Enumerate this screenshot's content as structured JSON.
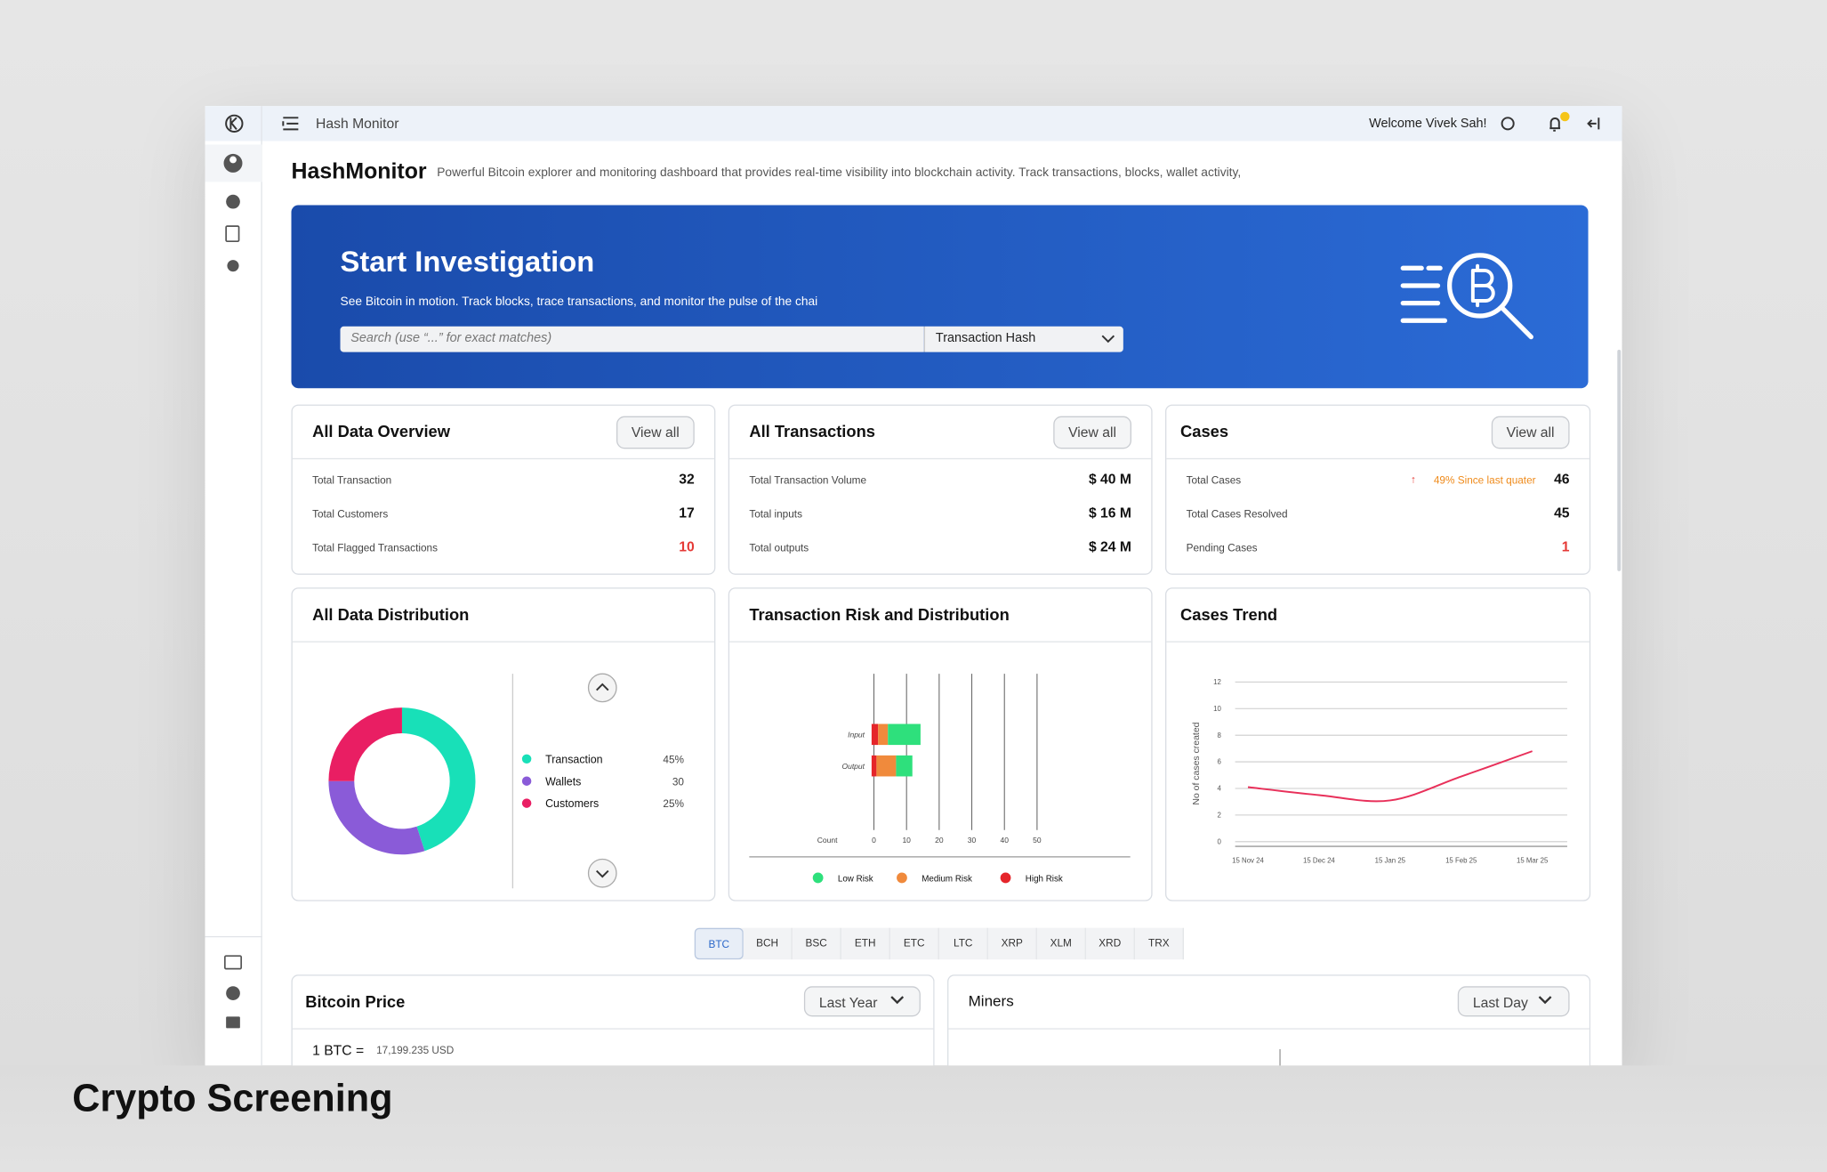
{
  "brand": "Crypto Screening",
  "topbar": {
    "title": "Hash Monitor",
    "welcome": "Welcome Vivek Sah!"
  },
  "header": {
    "title": "HashMonitor",
    "description": "Powerful Bitcoin explorer and monitoring dashboard that provides real-time visibility into blockchain activity. Track transactions, blocks, wallet activity,"
  },
  "hero": {
    "title": "Start Investigation",
    "subtitle": "See Bitcoin in motion. Track blocks, trace transactions, and monitor the pulse of the chai",
    "search_placeholder": "Search (use “...” for exact matches)",
    "search_type": "Transaction Hash"
  },
  "overview_cards": [
    {
      "title": "All Data Overview",
      "button": "View all",
      "rows": [
        {
          "label": "Total Transaction",
          "value": "32"
        },
        {
          "label": "Total Customers",
          "value": "17"
        },
        {
          "label": "Total Flagged Transactions",
          "value": "10",
          "value_color": "#e53935"
        }
      ]
    },
    {
      "title": "All Transactions",
      "button": "View all",
      "rows": [
        {
          "label": "Total Transaction Volume",
          "value": "$ 40 M"
        },
        {
          "label": "Total inputs",
          "value": "$ 16 M"
        },
        {
          "label": "Total outputs",
          "value": "$ 24 M"
        }
      ]
    },
    {
      "title": "Cases",
      "button": "View all",
      "rows": [
        {
          "label": "Total Cases",
          "value": "46",
          "note": "49% Since last quater"
        },
        {
          "label": "Total Cases Resolved",
          "value": "45"
        },
        {
          "label": "Pending Cases",
          "value": "1",
          "value_color": "#e53935"
        }
      ]
    }
  ],
  "distribution": {
    "title": "All Data Distribution",
    "chart": {
      "type": "pie",
      "categories": [
        "Transaction",
        "Wallets",
        "Customers"
      ],
      "values": [
        45,
        30,
        25
      ],
      "value_labels": [
        "45%",
        "30",
        "25%"
      ],
      "colors": [
        "#18e0b8",
        "#8a5bd8",
        "#e91e63"
      ]
    }
  },
  "risk": {
    "title": "Transaction Risk and Distribution",
    "chart": {
      "type": "bar",
      "orientation": "horizontal",
      "stacked": true,
      "categories": [
        "Input",
        "Output"
      ],
      "x_label": "Count",
      "series": [
        {
          "name": "High Risk",
          "color": "#e5252a",
          "values": [
            2,
            1.5
          ]
        },
        {
          "name": "Medium Risk",
          "color": "#f08a3c",
          "values": [
            3,
            6
          ]
        },
        {
          "name": "Low Risk",
          "color": "#2ee07c",
          "values": [
            10,
            5
          ]
        }
      ],
      "legend_order": [
        "Low Risk",
        "Medium Risk",
        "High Risk"
      ],
      "xlim": [
        0,
        50
      ],
      "xticks": [
        0,
        10,
        20,
        30,
        40,
        50
      ],
      "grid": true
    }
  },
  "trend": {
    "title": "Cases Trend",
    "chart": {
      "type": "line",
      "y_label": "No of cases created",
      "categories": [
        "15 Nov 24",
        "15 Dec 24",
        "15 Jan 25",
        "15 Feb 25",
        "15 Mar 25"
      ],
      "series": [
        {
          "name": "Cases",
          "color": "#e8305a",
          "values": [
            4.1,
            3.5,
            3.1,
            4.9,
            6.8
          ]
        }
      ],
      "ylim": [
        0,
        12
      ],
      "yticks": [
        0,
        2,
        4,
        6,
        8,
        10,
        12
      ],
      "grid": true
    }
  },
  "tabs": {
    "items": [
      "BTC",
      "BCH",
      "BSC",
      "ETH",
      "ETC",
      "LTC",
      "XRP",
      "XLM",
      "XRD",
      "TRX"
    ],
    "active": 0
  },
  "price": {
    "title": "Bitcoin Price",
    "filter": "Last Year",
    "label": "1 BTC =",
    "value": "17,199.235 USD"
  },
  "miners": {
    "title": "Miners",
    "filter": "Last Day"
  }
}
